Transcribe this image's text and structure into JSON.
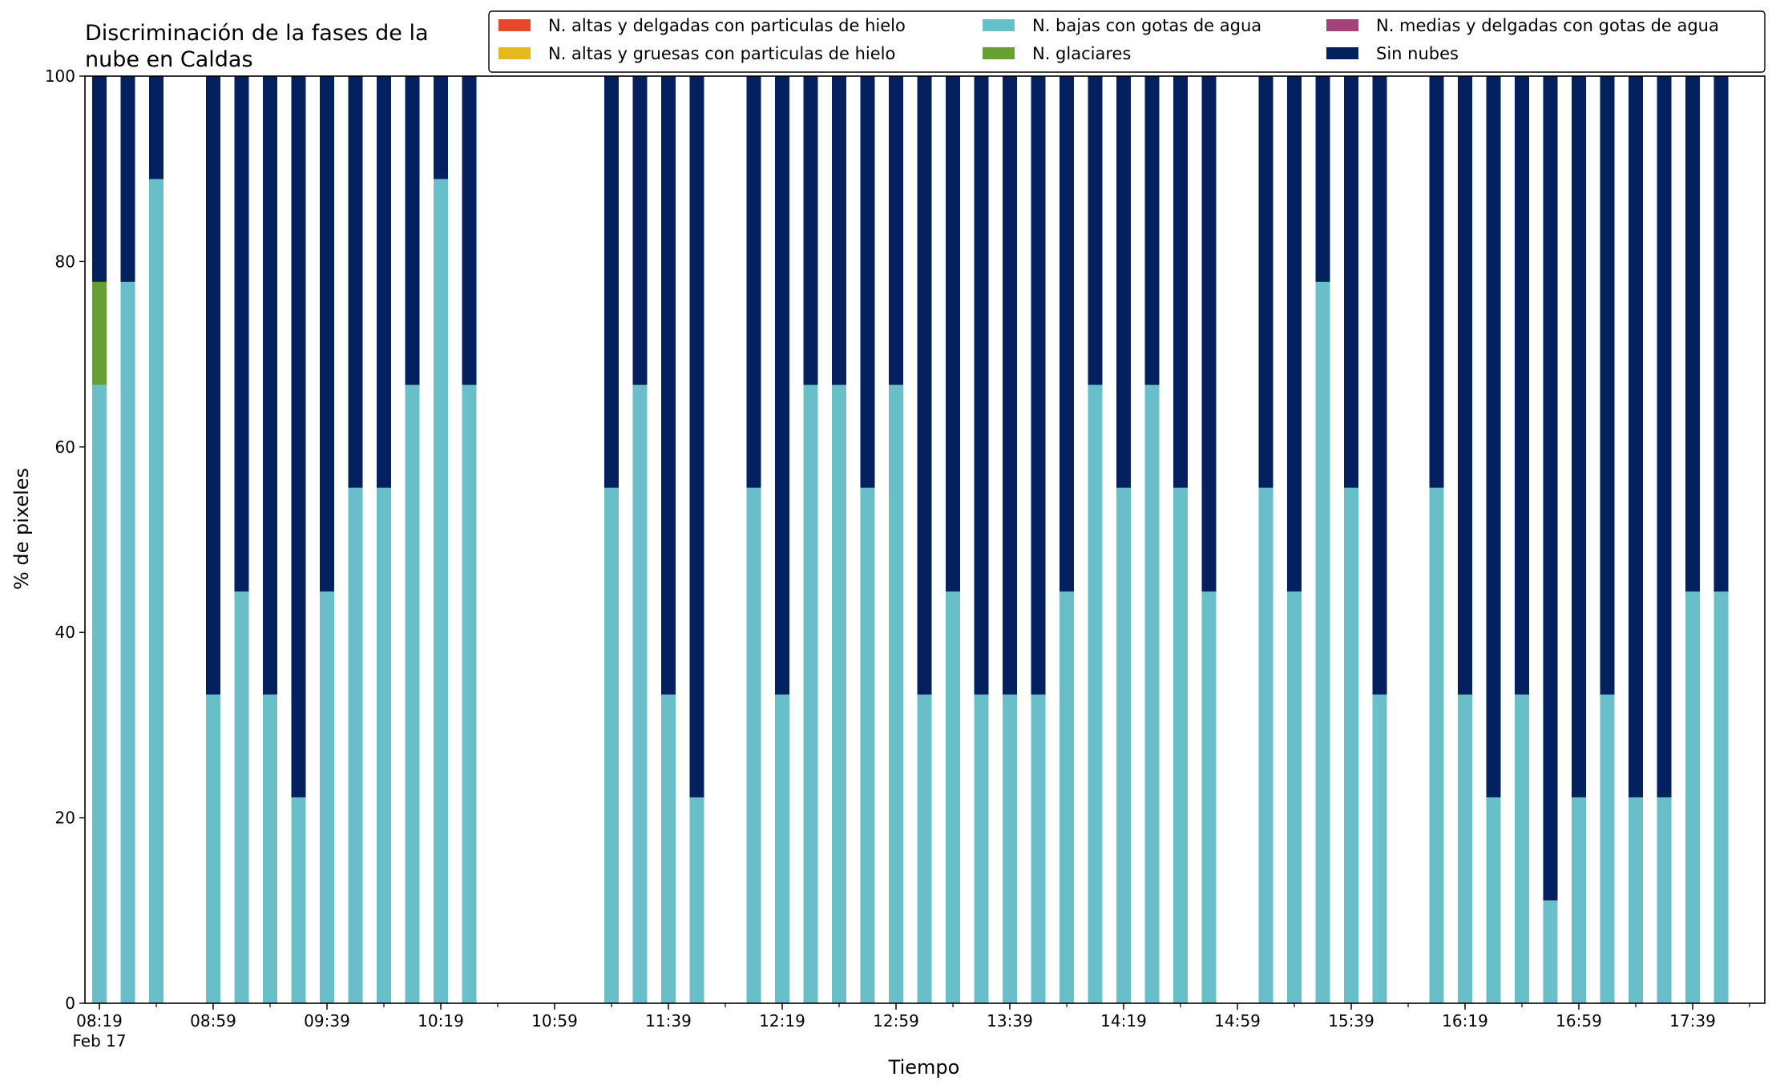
{
  "chart_data": {
    "type": "bar",
    "stacked": true,
    "title": "Discriminación de la fases de la\nnube en Caldas",
    "xlabel": "Tiempo",
    "ylabel": "% de pixeles",
    "ylim": [
      0,
      100
    ],
    "yticks": [
      0,
      20,
      40,
      60,
      80,
      100
    ],
    "grid": false,
    "legend_position": "top-right",
    "slot_minutes": 10,
    "slots": 59,
    "x_tick_labels": [
      {
        "slot": 0,
        "label": "08:19",
        "sublabel": "Feb 17"
      },
      {
        "slot": 4,
        "label": "08:59"
      },
      {
        "slot": 8,
        "label": "09:39"
      },
      {
        "slot": 12,
        "label": "10:19"
      },
      {
        "slot": 16,
        "label": "10:59"
      },
      {
        "slot": 20,
        "label": "11:39"
      },
      {
        "slot": 24,
        "label": "12:19"
      },
      {
        "slot": 28,
        "label": "12:59"
      },
      {
        "slot": 32,
        "label": "13:39"
      },
      {
        "slot": 36,
        "label": "14:19"
      },
      {
        "slot": 40,
        "label": "14:59"
      },
      {
        "slot": 44,
        "label": "15:39"
      },
      {
        "slot": 48,
        "label": "16:19"
      },
      {
        "slot": 52,
        "label": "16:59"
      },
      {
        "slot": 56,
        "label": "17:39"
      }
    ],
    "series": [
      {
        "name": "N. altas y delgadas con particulas de hielo",
        "color": "#e8472c"
      },
      {
        "name": "N. altas y gruesas con particulas de hielo",
        "color": "#e6b81c"
      },
      {
        "name": "N. bajas con gotas de agua",
        "color": "#68bfc9"
      },
      {
        "name": "N. glaciares",
        "color": "#66a032"
      },
      {
        "name": "N. medias y delgadas con gotas de agua",
        "color": "#a3437a"
      },
      {
        "name": "Sin nubes",
        "color": "#03205f"
      }
    ],
    "bars": [
      {
        "slot": 0,
        "values": [
          0,
          0,
          66.7,
          11.1,
          0,
          22.2
        ]
      },
      {
        "slot": 1,
        "values": [
          0,
          0,
          77.8,
          0,
          0,
          22.2
        ]
      },
      {
        "slot": 2,
        "values": [
          0,
          0,
          88.9,
          0,
          0,
          11.1
        ]
      },
      {
        "slot": 4,
        "values": [
          0,
          0,
          33.3,
          0,
          0,
          66.7
        ]
      },
      {
        "slot": 5,
        "values": [
          0,
          0,
          44.4,
          0,
          0,
          55.6
        ]
      },
      {
        "slot": 6,
        "values": [
          0,
          0,
          33.3,
          0,
          0,
          66.7
        ]
      },
      {
        "slot": 7,
        "values": [
          0,
          0,
          22.2,
          0,
          0,
          77.8
        ]
      },
      {
        "slot": 8,
        "values": [
          0,
          0,
          44.4,
          0,
          0,
          55.6
        ]
      },
      {
        "slot": 9,
        "values": [
          0,
          0,
          55.6,
          0,
          0,
          44.4
        ]
      },
      {
        "slot": 10,
        "values": [
          0,
          0,
          55.6,
          0,
          0,
          44.4
        ]
      },
      {
        "slot": 11,
        "values": [
          0,
          0,
          66.7,
          0,
          0,
          33.3
        ]
      },
      {
        "slot": 12,
        "values": [
          0,
          0,
          88.9,
          0,
          0,
          11.1
        ]
      },
      {
        "slot": 13,
        "values": [
          0,
          0,
          66.7,
          0,
          0,
          33.3
        ]
      },
      {
        "slot": 18,
        "values": [
          0,
          0,
          55.6,
          0,
          0,
          44.4
        ]
      },
      {
        "slot": 19,
        "values": [
          0,
          0,
          66.7,
          0,
          0,
          33.3
        ]
      },
      {
        "slot": 20,
        "values": [
          0,
          0,
          33.3,
          0,
          0,
          66.7
        ]
      },
      {
        "slot": 21,
        "values": [
          0,
          0,
          22.2,
          0,
          0,
          77.8
        ]
      },
      {
        "slot": 23,
        "values": [
          0,
          0,
          55.6,
          0,
          0,
          44.4
        ]
      },
      {
        "slot": 24,
        "values": [
          0,
          0,
          33.3,
          0,
          0,
          66.7
        ]
      },
      {
        "slot": 25,
        "values": [
          0,
          0,
          66.7,
          0,
          0,
          33.3
        ]
      },
      {
        "slot": 26,
        "values": [
          0,
          0,
          66.7,
          0,
          0,
          33.3
        ]
      },
      {
        "slot": 27,
        "values": [
          0,
          0,
          55.6,
          0,
          0,
          44.4
        ]
      },
      {
        "slot": 28,
        "values": [
          0,
          0,
          66.7,
          0,
          0,
          33.3
        ]
      },
      {
        "slot": 29,
        "values": [
          0,
          0,
          33.3,
          0,
          0,
          66.7
        ]
      },
      {
        "slot": 30,
        "values": [
          0,
          0,
          44.4,
          0,
          0,
          55.6
        ]
      },
      {
        "slot": 31,
        "values": [
          0,
          0,
          33.3,
          0,
          0,
          66.7
        ]
      },
      {
        "slot": 32,
        "values": [
          0,
          0,
          33.3,
          0,
          0,
          66.7
        ]
      },
      {
        "slot": 33,
        "values": [
          0,
          0,
          33.3,
          0,
          0,
          66.7
        ]
      },
      {
        "slot": 34,
        "values": [
          0,
          0,
          44.4,
          0,
          0,
          55.6
        ]
      },
      {
        "slot": 35,
        "values": [
          0,
          0,
          66.7,
          0,
          0,
          33.3
        ]
      },
      {
        "slot": 36,
        "values": [
          0,
          0,
          55.6,
          0,
          0,
          44.4
        ]
      },
      {
        "slot": 37,
        "values": [
          0,
          0,
          66.7,
          0,
          0,
          33.3
        ]
      },
      {
        "slot": 38,
        "values": [
          0,
          0,
          55.6,
          0,
          0,
          44.4
        ]
      },
      {
        "slot": 39,
        "values": [
          0,
          0,
          44.4,
          0,
          0,
          55.6
        ]
      },
      {
        "slot": 41,
        "values": [
          0,
          0,
          55.6,
          0,
          0,
          44.4
        ]
      },
      {
        "slot": 42,
        "values": [
          0,
          0,
          44.4,
          0,
          0,
          55.6
        ]
      },
      {
        "slot": 43,
        "values": [
          0,
          0,
          77.8,
          0,
          0,
          22.2
        ]
      },
      {
        "slot": 44,
        "values": [
          0,
          0,
          55.6,
          0,
          0,
          44.4
        ]
      },
      {
        "slot": 45,
        "values": [
          0,
          0,
          33.3,
          0,
          0,
          66.7
        ]
      },
      {
        "slot": 47,
        "values": [
          0,
          0,
          55.6,
          0,
          0,
          44.4
        ]
      },
      {
        "slot": 48,
        "values": [
          0,
          0,
          33.3,
          0,
          0,
          66.7
        ]
      },
      {
        "slot": 49,
        "values": [
          0,
          0,
          22.2,
          0,
          0,
          77.8
        ]
      },
      {
        "slot": 50,
        "values": [
          0,
          0,
          33.3,
          0,
          0,
          66.7
        ]
      },
      {
        "slot": 51,
        "values": [
          0,
          0,
          11.1,
          0,
          0,
          88.9
        ]
      },
      {
        "slot": 52,
        "values": [
          0,
          0,
          22.2,
          0,
          0,
          77.8
        ]
      },
      {
        "slot": 53,
        "values": [
          0,
          0,
          33.3,
          0,
          0,
          66.7
        ]
      },
      {
        "slot": 54,
        "values": [
          0,
          0,
          22.2,
          0,
          0,
          77.8
        ]
      },
      {
        "slot": 55,
        "values": [
          0,
          0,
          22.2,
          0,
          0,
          77.8
        ]
      },
      {
        "slot": 56,
        "values": [
          0,
          0,
          44.4,
          0,
          0,
          55.6
        ]
      },
      {
        "slot": 57,
        "values": [
          0,
          0,
          44.4,
          0,
          0,
          55.6
        ]
      }
    ]
  }
}
